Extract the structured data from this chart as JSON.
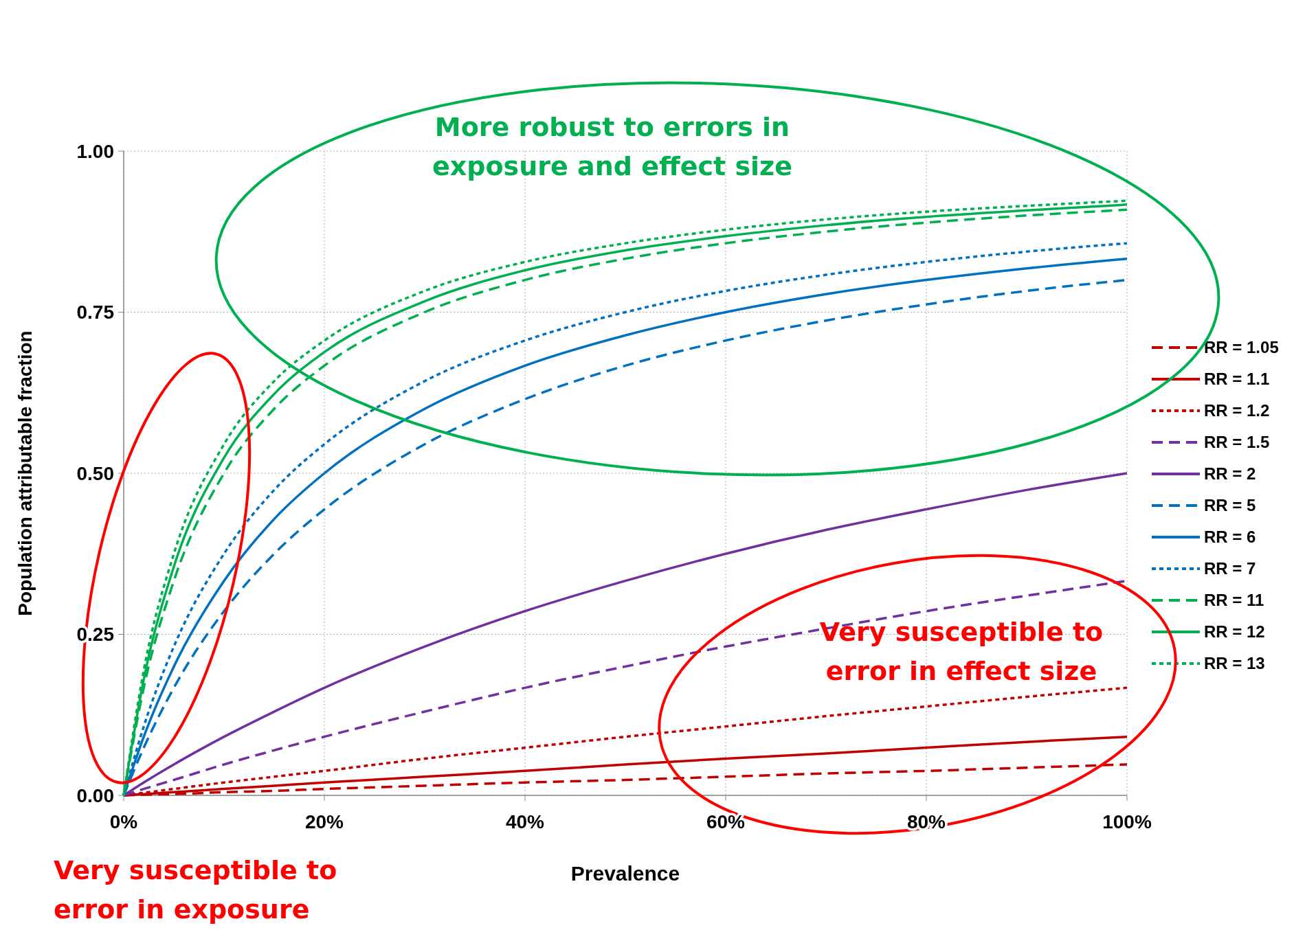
{
  "chart_data": {
    "type": "line",
    "xlabel": "Prevalence",
    "ylabel": "Population attributable fraction",
    "x": [
      0,
      0.02,
      0.05,
      0.1,
      0.15,
      0.2,
      0.3,
      0.4,
      0.5,
      0.6,
      0.7,
      0.8,
      0.9,
      1
    ],
    "xlim": [
      0,
      1
    ],
    "xticks": [
      {
        "value": 0,
        "label": "0%"
      },
      {
        "value": 0.2,
        "label": "20%"
      },
      {
        "value": 0.4,
        "label": "40%"
      },
      {
        "value": 0.6,
        "label": "60%"
      },
      {
        "value": 0.8,
        "label": "80%"
      },
      {
        "value": 1,
        "label": "100%"
      }
    ],
    "ylim": [
      0,
      1
    ],
    "yticks": [
      {
        "value": 0,
        "label": "0.00"
      },
      {
        "value": 0.25,
        "label": "0.25"
      },
      {
        "value": 0.5,
        "label": "0.50"
      },
      {
        "value": 0.75,
        "label": "0.75"
      },
      {
        "value": 1,
        "label": "1.00"
      }
    ],
    "grid": true,
    "legend": "right",
    "marker": "none",
    "series": [
      {
        "name": "RR = 1.05",
        "color": "#c00000",
        "line_style": "dashed",
        "values": [
          0,
          0.001,
          0.002,
          0.005,
          0.007,
          0.01,
          0.015,
          0.02,
          0.024,
          0.029,
          0.034,
          0.038,
          0.043,
          0.048
        ]
      },
      {
        "name": "RR = 1.1",
        "color": "#c00000",
        "line_style": "solid",
        "values": [
          0,
          0.002,
          0.005,
          0.01,
          0.015,
          0.02,
          0.029,
          0.038,
          0.048,
          0.057,
          0.065,
          0.074,
          0.083,
          0.091
        ]
      },
      {
        "name": "RR = 1.2",
        "color": "#c00000",
        "line_style": "dotted",
        "values": [
          0,
          0.004,
          0.01,
          0.02,
          0.029,
          0.038,
          0.057,
          0.074,
          0.091,
          0.107,
          0.123,
          0.138,
          0.153,
          0.167
        ]
      },
      {
        "name": "RR = 1.5",
        "color": "#7030a0",
        "line_style": "dashed",
        "values": [
          0,
          0.01,
          0.024,
          0.048,
          0.07,
          0.091,
          0.13,
          0.167,
          0.2,
          0.231,
          0.259,
          0.286,
          0.31,
          0.333
        ]
      },
      {
        "name": "RR = 2",
        "color": "#7030a0",
        "line_style": "solid",
        "values": [
          0,
          0.02,
          0.048,
          0.091,
          0.13,
          0.167,
          0.231,
          0.286,
          0.333,
          0.375,
          0.412,
          0.444,
          0.474,
          0.5
        ]
      },
      {
        "name": "RR = 5",
        "color": "#0070c0",
        "line_style": "dashed",
        "values": [
          0,
          0.074,
          0.167,
          0.286,
          0.375,
          0.444,
          0.545,
          0.615,
          0.667,
          0.706,
          0.737,
          0.762,
          0.783,
          0.8
        ]
      },
      {
        "name": "RR = 6",
        "color": "#0070c0",
        "line_style": "solid",
        "values": [
          0,
          0.091,
          0.2,
          0.333,
          0.429,
          0.5,
          0.6,
          0.667,
          0.714,
          0.75,
          0.778,
          0.8,
          0.818,
          0.833
        ]
      },
      {
        "name": "RR = 7",
        "color": "#0070c0",
        "line_style": "dotted",
        "values": [
          0,
          0.107,
          0.231,
          0.375,
          0.474,
          0.545,
          0.643,
          0.706,
          0.75,
          0.783,
          0.808,
          0.828,
          0.844,
          0.857
        ]
      },
      {
        "name": "RR = 11",
        "color": "#00b050",
        "line_style": "dashed",
        "values": [
          0,
          0.167,
          0.333,
          0.5,
          0.6,
          0.667,
          0.75,
          0.8,
          0.833,
          0.857,
          0.875,
          0.889,
          0.9,
          0.909
        ]
      },
      {
        "name": "RR = 12",
        "color": "#00b050",
        "line_style": "solid",
        "values": [
          0,
          0.18,
          0.355,
          0.524,
          0.623,
          0.688,
          0.767,
          0.815,
          0.846,
          0.868,
          0.885,
          0.898,
          0.908,
          0.917
        ]
      },
      {
        "name": "RR = 13",
        "color": "#00b050",
        "line_style": "dotted",
        "values": [
          0,
          0.194,
          0.375,
          0.545,
          0.643,
          0.706,
          0.783,
          0.828,
          0.857,
          0.878,
          0.894,
          0.906,
          0.915,
          0.923
        ]
      }
    ],
    "annotations": [
      "More robust to errors in\nexposure and effect size",
      "Very susceptible to\nerror in effect size",
      "Very susceptible to\nerror in exposure"
    ]
  }
}
